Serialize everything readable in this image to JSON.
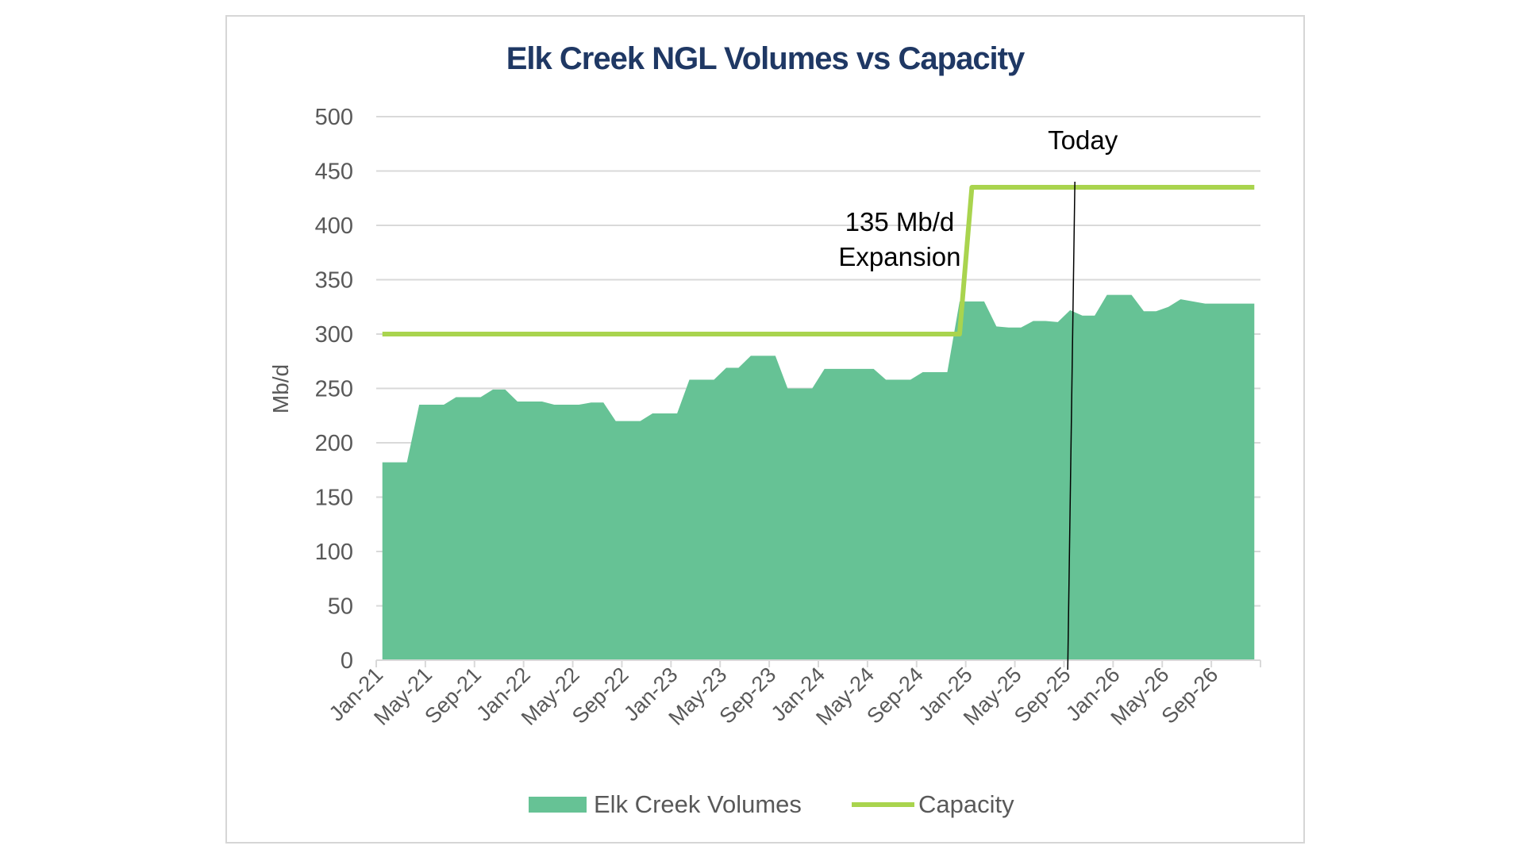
{
  "chart_data": {
    "type": "area",
    "title": "Elk Creek NGL Volumes vs Capacity",
    "ylabel": "Mb/d",
    "ylim": [
      0,
      500
    ],
    "yticks": [
      "0",
      "50",
      "100",
      "150",
      "200",
      "250",
      "300",
      "350",
      "400",
      "450",
      "500"
    ],
    "x_tick_labels": [
      "Jan-21",
      "May-21",
      "Sep-21",
      "Jan-22",
      "May-22",
      "Sep-22",
      "Jan-23",
      "May-23",
      "Sep-23",
      "Jan-24",
      "May-24",
      "Sep-24",
      "Jan-25",
      "May-25",
      "Sep-25",
      "Jan-26",
      "May-26",
      "Sep-26"
    ],
    "x_range": [
      "Jan-21",
      "Dec-26"
    ],
    "grid": "horizontal",
    "legend_position": "bottom",
    "series": [
      {
        "name": "Elk Creek Volumes",
        "type": "area",
        "color": "#66c295",
        "x": [
          "Jan-21",
          "Mar-21",
          "Apr-21",
          "Jun-21",
          "Jul-21",
          "Aug-21",
          "Sep-21",
          "Oct-21",
          "Nov-21",
          "Dec-21",
          "Jan-22",
          "Feb-22",
          "Mar-22",
          "Apr-22",
          "May-22",
          "Jun-22",
          "Jul-22",
          "Aug-22",
          "Sep-22",
          "Oct-22",
          "Nov-22",
          "Dec-22",
          "Jan-23",
          "Feb-23",
          "Mar-23",
          "Apr-23",
          "May-23",
          "Jun-23",
          "Jul-23",
          "Aug-23",
          "Sep-23",
          "Oct-23",
          "Nov-23",
          "Dec-23",
          "Jan-24",
          "Feb-24",
          "Mar-24",
          "Apr-24",
          "May-24",
          "Jun-24",
          "Jul-24",
          "Aug-24",
          "Sep-24",
          "Oct-24",
          "Nov-24",
          "Dec-24",
          "Jan-25",
          "Feb-25",
          "Mar-25",
          "Apr-25",
          "May-25",
          "Jun-25",
          "Jul-25",
          "Aug-25",
          "Sep-25",
          "Oct-25",
          "Nov-25",
          "Dec-25",
          "Jan-26",
          "Feb-26",
          "Mar-26",
          "Apr-26",
          "May-26",
          "Jun-26",
          "Jul-26",
          "Aug-26",
          "Sep-26",
          "Oct-26",
          "Nov-26",
          "Dec-26"
        ],
        "values": [
          182,
          182,
          235,
          235,
          242,
          242,
          242,
          249,
          249,
          238,
          238,
          238,
          235,
          235,
          235,
          237,
          237,
          220,
          220,
          220,
          227,
          227,
          227,
          258,
          258,
          258,
          269,
          269,
          280,
          280,
          280,
          250,
          250,
          250,
          268,
          268,
          268,
          268,
          268,
          258,
          258,
          258,
          265,
          265,
          265,
          330,
          330,
          330,
          307,
          306,
          306,
          312,
          312,
          311,
          322,
          317,
          317,
          336,
          336,
          336,
          321,
          321,
          325,
          332,
          330,
          328,
          328,
          328,
          328,
          328
        ]
      },
      {
        "name": "Capacity",
        "type": "line",
        "color": "#a9d44e",
        "x": [
          "Jan-21",
          "Dec-24",
          "Jan-25",
          "Dec-26"
        ],
        "values": [
          300,
          300,
          435,
          435
        ]
      }
    ],
    "annotations": [
      {
        "lines": [
          "135 Mb/d",
          "Expansion"
        ],
        "near": "Nov-24",
        "y": 395
      },
      {
        "text": "Today",
        "at": "Sep-25"
      }
    ]
  }
}
